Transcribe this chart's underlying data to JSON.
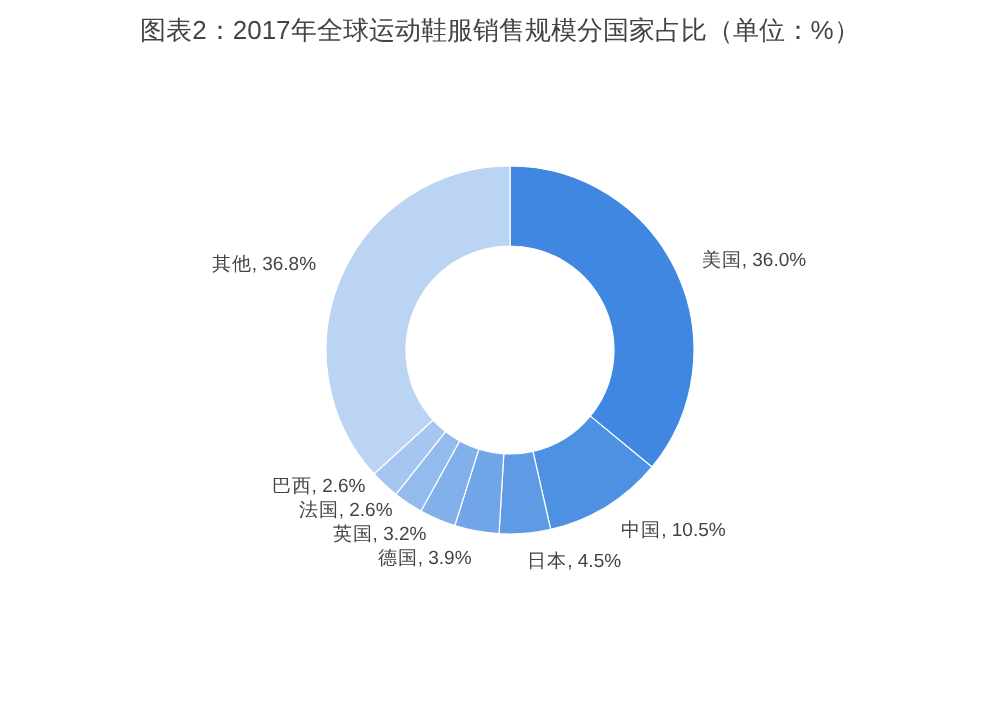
{
  "chart_data": {
    "type": "donut",
    "title": "图表2：2017年全球运动鞋服销售规模分国家占比（单位：%）",
    "categories": [
      "美国",
      "中国",
      "日本",
      "德国",
      "英国",
      "法国",
      "巴西",
      "其他"
    ],
    "values": [
      36.0,
      10.5,
      4.5,
      3.9,
      3.2,
      2.6,
      2.6,
      36.8
    ],
    "colors": [
      "#3f87e0",
      "#4e90e2",
      "#5f9ae5",
      "#70a5e8",
      "#82b0ea",
      "#93bbed",
      "#a5c6f0",
      "#bcd4f3"
    ],
    "value_labels": [
      ", 36.0%",
      ", 10.5%",
      ", 4.5%",
      ", 3.9%",
      ", 3.2%",
      ", 2.6%",
      ", 2.6%",
      ", 36.8%"
    ]
  }
}
